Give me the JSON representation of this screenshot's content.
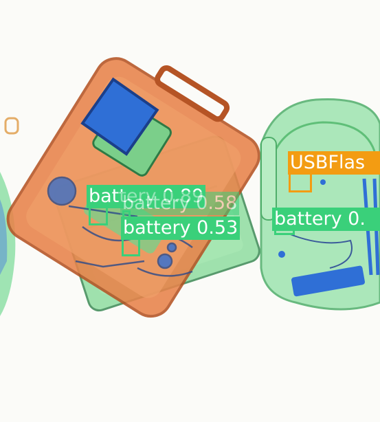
{
  "image": {
    "description_colors": {
      "background": "#fbfbf8",
      "organic": "#e07a3a",
      "inorganic": "#5fd08a",
      "metal": "#2f6fd6"
    }
  },
  "detections": [
    {
      "label": "battery",
      "score": "0.89",
      "color": "#3ad07a"
    },
    {
      "label": "battery",
      "score": "0.58",
      "color": "#3ad07a"
    },
    {
      "label": "battery",
      "score": "0.53",
      "color": "#3ad07a"
    },
    {
      "label": "battery",
      "score": "0.",
      "color": "#3ad07a"
    },
    {
      "label": "USBFlas",
      "score": "",
      "color": "#f39c12"
    }
  ]
}
